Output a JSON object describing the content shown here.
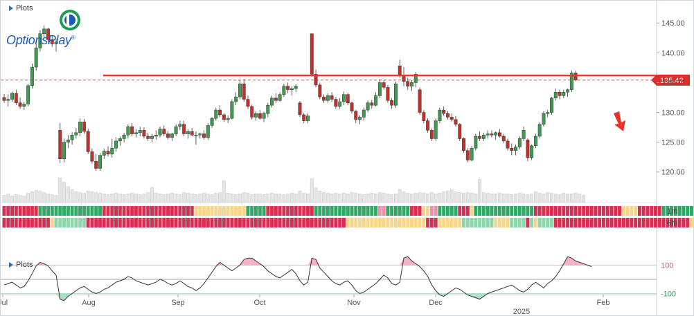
{
  "brand": {
    "name": "OptionsPlay",
    "mark": "®"
  },
  "plots_label": "Plots",
  "price_tag": "135.42",
  "heatmap_labels": [
    "1m",
    "6m"
  ],
  "colors": {
    "up": "#3e9b4f",
    "down": "#c0312b",
    "resistance": "#e03c31",
    "price_tag": "#d7302a",
    "arrow": "#e8322b",
    "heat_red": "#d92e54",
    "heat_pink": "#f08eae",
    "heat_yellow": "#f7d68a",
    "heat_lightgreen": "#8fd6ad",
    "heat_green": "#2ea866",
    "volume": "#e3e3e3"
  },
  "chart_data": {
    "type": "candlestick",
    "y_axis": {
      "ticks": [
        "145.00",
        "140.00",
        "135.00",
        "130.00",
        "125.00",
        "120.00"
      ],
      "range": [
        117.3,
        147.0
      ]
    },
    "x_axis": {
      "months": [
        "Jul",
        "Aug",
        "Sep",
        "Oct",
        "Nov",
        "Dec",
        "Feb"
      ],
      "year_label": "2025"
    },
    "resistance_level": 136.2,
    "last_price": 135.42,
    "trend_arrow": "down",
    "candles": [
      [
        132.5,
        133.1,
        131.6,
        132.0
      ],
      [
        132.0,
        133.0,
        131.0,
        132.2
      ],
      [
        132.2,
        133.5,
        131.8,
        133.2
      ],
      [
        133.2,
        133.8,
        131.2,
        131.6
      ],
      [
        131.6,
        132.5,
        130.6,
        131.0
      ],
      [
        131.0,
        131.8,
        130.4,
        131.4
      ],
      [
        131.4,
        134.8,
        131.0,
        134.5
      ],
      [
        134.5,
        138.2,
        134.0,
        137.6
      ],
      [
        137.6,
        141.5,
        137.0,
        140.8
      ],
      [
        140.8,
        143.8,
        140.2,
        143.2
      ],
      [
        143.2,
        144.6,
        142.6,
        144.0
      ],
      [
        144.0,
        144.2,
        141.8,
        142.2
      ],
      [
        142.2,
        142.9,
        141.0,
        141.5
      ],
      [
        141.5,
        142.3,
        140.2,
        141.8
      ],
      [
        127.0,
        128.2,
        121.5,
        122.2
      ],
      [
        122.2,
        125.6,
        121.6,
        125.0
      ],
      [
        125.0,
        126.2,
        124.0,
        125.4
      ],
      [
        125.4,
        126.7,
        124.6,
        126.2
      ],
      [
        126.2,
        127.4,
        125.6,
        126.6
      ],
      [
        126.6,
        129.0,
        126.0,
        128.4
      ],
      [
        128.4,
        128.9,
        126.4,
        126.8
      ],
      [
        126.8,
        127.3,
        123.0,
        123.4
      ],
      [
        123.4,
        123.9,
        121.4,
        121.8
      ],
      [
        121.8,
        123.0,
        120.2,
        120.6
      ],
      [
        120.6,
        123.2,
        120.2,
        122.8
      ],
      [
        122.8,
        123.9,
        122.2,
        123.5
      ],
      [
        123.5,
        124.3,
        122.6,
        123.0
      ],
      [
        123.0,
        125.6,
        122.4,
        124.0
      ],
      [
        124.0,
        125.8,
        123.4,
        125.2
      ],
      [
        125.2,
        126.0,
        124.4,
        125.6
      ],
      [
        125.6,
        126.6,
        125.0,
        126.2
      ],
      [
        126.2,
        128.0,
        125.6,
        127.6
      ],
      [
        127.6,
        128.2,
        126.0,
        126.4
      ],
      [
        126.4,
        127.2,
        125.8,
        126.6
      ],
      [
        126.6,
        127.6,
        126.0,
        127.0
      ],
      [
        127.0,
        127.5,
        125.6,
        126.0
      ],
      [
        126.0,
        126.6,
        125.2,
        125.6
      ],
      [
        125.6,
        126.4,
        125.0,
        126.0
      ],
      [
        126.0,
        127.0,
        125.4,
        126.2
      ],
      [
        126.2,
        127.6,
        125.8,
        127.2
      ],
      [
        127.2,
        127.8,
        126.0,
        126.4
      ],
      [
        126.4,
        126.9,
        125.4,
        125.8
      ],
      [
        125.8,
        126.6,
        125.2,
        126.4
      ],
      [
        126.4,
        128.0,
        126.0,
        127.6
      ],
      [
        127.6,
        128.6,
        127.0,
        128.0
      ],
      [
        128.0,
        128.6,
        126.0,
        126.4
      ],
      [
        126.4,
        127.2,
        125.6,
        126.8
      ],
      [
        126.8,
        127.4,
        126.0,
        126.2
      ],
      [
        126.2,
        126.8,
        124.6,
        126.2
      ],
      [
        126.2,
        126.6,
        125.6,
        126.4
      ],
      [
        126.4,
        127.0,
        125.4,
        125.8
      ],
      [
        125.8,
        128.2,
        125.4,
        127.8
      ],
      [
        127.8,
        129.2,
        127.4,
        129.0
      ],
      [
        129.0,
        130.8,
        128.6,
        130.4
      ],
      [
        130.4,
        131.2,
        129.2,
        129.6
      ],
      [
        129.6,
        129.9,
        128.4,
        128.8
      ],
      [
        128.8,
        129.5,
        128.2,
        129.0
      ],
      [
        129.0,
        132.2,
        128.8,
        131.8
      ],
      [
        131.8,
        133.4,
        131.2,
        132.6
      ],
      [
        132.6,
        135.4,
        132.2,
        134.8
      ],
      [
        134.8,
        135.6,
        131.8,
        132.2
      ],
      [
        132.2,
        132.8,
        130.6,
        131.0
      ],
      [
        131.0,
        131.3,
        128.8,
        129.2
      ],
      [
        129.2,
        130.2,
        128.6,
        129.8
      ],
      [
        129.8,
        130.4,
        128.8,
        129.0
      ],
      [
        129.0,
        130.1,
        128.4,
        129.8
      ],
      [
        129.8,
        131.6,
        129.2,
        131.2
      ],
      [
        131.2,
        132.8,
        130.8,
        132.4
      ],
      [
        132.4,
        133.2,
        131.6,
        132.0
      ],
      [
        132.0,
        133.4,
        131.8,
        133.0
      ],
      [
        133.0,
        134.8,
        132.6,
        134.4
      ],
      [
        134.4,
        135.0,
        133.2,
        133.8
      ],
      [
        133.8,
        134.4,
        132.8,
        134.0
      ],
      [
        134.0,
        134.7,
        133.4,
        134.4
      ],
      [
        131.6,
        131.9,
        129.2,
        129.6
      ],
      [
        129.6,
        129.9,
        128.2,
        128.6
      ],
      [
        128.6,
        129.8,
        128.2,
        129.4
      ],
      [
        143.2,
        143.2,
        136.0,
        136.4
      ],
      [
        136.4,
        137.2,
        134.2,
        134.6
      ],
      [
        134.6,
        135.0,
        132.2,
        132.6
      ],
      [
        132.6,
        133.0,
        131.6,
        132.0
      ],
      [
        132.0,
        133.2,
        131.6,
        132.8
      ],
      [
        132.8,
        133.4,
        131.8,
        132.2
      ],
      [
        132.2,
        132.6,
        130.6,
        131.0
      ],
      [
        131.0,
        132.4,
        130.6,
        131.8
      ],
      [
        131.8,
        133.5,
        131.2,
        133.0
      ],
      [
        133.0,
        133.3,
        131.2,
        131.6
      ],
      [
        131.6,
        131.8,
        129.8,
        130.2
      ],
      [
        130.2,
        130.4,
        128.2,
        128.8
      ],
      [
        128.8,
        129.5,
        128.0,
        129.2
      ],
      [
        129.2,
        130.8,
        128.6,
        130.4
      ],
      [
        130.4,
        132.0,
        130.0,
        131.6
      ],
      [
        131.6,
        132.1,
        130.6,
        131.2
      ],
      [
        131.2,
        133.4,
        131.0,
        132.8
      ],
      [
        132.8,
        135.6,
        132.4,
        135.0
      ],
      [
        135.0,
        135.4,
        133.8,
        134.2
      ],
      [
        134.2,
        134.6,
        131.6,
        132.0
      ],
      [
        132.0,
        132.4,
        130.6,
        131.2
      ],
      [
        131.2,
        135.2,
        130.8,
        134.8
      ],
      [
        137.8,
        138.8,
        135.8,
        136.2
      ],
      [
        136.2,
        137.6,
        134.4,
        135.2
      ],
      [
        135.2,
        135.8,
        133.8,
        134.4
      ],
      [
        134.4,
        135.4,
        133.6,
        135.0
      ],
      [
        135.0,
        136.8,
        134.2,
        136.4
      ],
      [
        133.8,
        134.2,
        129.6,
        130.0
      ],
      [
        130.0,
        130.4,
        128.2,
        128.6
      ],
      [
        128.6,
        129.0,
        126.6,
        127.0
      ],
      [
        127.0,
        127.3,
        125.2,
        125.6
      ],
      [
        125.6,
        129.0,
        125.2,
        128.6
      ],
      [
        128.6,
        130.8,
        128.2,
        130.4
      ],
      [
        130.4,
        131.0,
        129.4,
        129.8
      ],
      [
        129.8,
        130.2,
        128.8,
        129.2
      ],
      [
        129.2,
        129.8,
        128.4,
        128.8
      ],
      [
        128.8,
        129.4,
        127.6,
        128.0
      ],
      [
        128.0,
        128.2,
        125.2,
        125.6
      ],
      [
        125.6,
        125.8,
        123.2,
        123.6
      ],
      [
        123.6,
        124.0,
        121.6,
        122.0
      ],
      [
        122.0,
        124.4,
        121.8,
        124.0
      ],
      [
        124.0,
        126.4,
        123.6,
        126.0
      ],
      [
        126.0,
        126.8,
        125.2,
        125.6
      ],
      [
        125.6,
        126.6,
        125.2,
        126.2
      ],
      [
        126.2,
        127.0,
        125.6,
        126.4
      ],
      [
        126.4,
        127.0,
        125.8,
        126.2
      ],
      [
        126.2,
        126.8,
        125.4,
        126.6
      ],
      [
        126.6,
        127.2,
        125.8,
        126.0
      ],
      [
        126.0,
        126.4,
        124.8,
        125.2
      ],
      [
        125.2,
        125.6,
        123.6,
        124.0
      ],
      [
        124.0,
        124.8,
        122.8,
        123.6
      ],
      [
        123.6,
        124.6,
        122.8,
        124.2
      ],
      [
        124.2,
        126.0,
        123.8,
        125.6
      ],
      [
        125.6,
        127.6,
        125.2,
        127.0
      ],
      [
        125.4,
        125.6,
        121.8,
        122.4
      ],
      [
        122.4,
        124.6,
        122.0,
        124.4
      ],
      [
        124.4,
        126.4,
        124.0,
        126.0
      ],
      [
        126.0,
        128.4,
        125.6,
        128.0
      ],
      [
        128.0,
        130.2,
        127.6,
        129.8
      ],
      [
        129.8,
        130.4,
        129.2,
        130.0
      ],
      [
        130.0,
        132.6,
        129.6,
        132.4
      ],
      [
        132.4,
        134.0,
        132.0,
        133.4
      ],
      [
        133.4,
        133.8,
        132.2,
        132.8
      ],
      [
        132.8,
        133.8,
        132.4,
        133.4
      ],
      [
        133.4,
        134.0,
        132.6,
        133.8
      ],
      [
        133.8,
        137.0,
        133.4,
        136.6
      ],
      [
        136.6,
        137.0,
        135.2,
        135.42
      ]
    ],
    "volume": [
      10,
      12,
      9,
      11,
      10,
      9,
      13,
      15,
      17,
      16,
      14,
      12,
      11,
      10,
      34,
      28,
      22,
      18,
      15,
      14,
      13,
      16,
      15,
      14,
      13,
      12,
      11,
      12,
      13,
      12,
      11,
      12,
      13,
      12,
      11,
      12,
      14,
      21,
      13,
      12,
      11,
      12,
      13,
      12,
      11,
      14,
      13,
      12,
      11,
      12,
      13,
      12,
      11,
      13,
      14,
      30,
      13,
      12,
      11,
      12,
      14,
      13,
      11,
      12,
      12,
      11,
      12,
      13,
      12,
      12,
      11,
      12,
      13,
      12,
      16,
      13,
      12,
      33,
      20,
      16,
      14,
      13,
      12,
      13,
      12,
      13,
      12,
      14,
      13,
      12,
      11,
      12,
      13,
      12,
      14,
      13,
      12,
      11,
      12,
      18,
      15,
      13,
      12,
      13,
      14,
      13,
      12,
      14,
      12,
      13,
      15,
      16,
      18,
      15,
      14,
      13,
      14,
      13,
      12,
      32,
      14,
      13,
      12,
      12,
      13,
      12,
      12,
      11,
      12,
      13,
      12,
      11,
      12,
      15,
      13,
      12,
      14,
      13,
      12,
      11,
      13,
      12,
      12,
      13,
      12,
      10
    ],
    "heatmap_1m": "RRRRRRRRRGGGGGGGGGGGGGGGGRRRRRRRRRRRRRRRRRRRRRRRYYYYYYYYYYYYYGGGGGRRRRRRRRRRRRGGGGGGGGGGGGGGGGPPGGGGGGRRRYYPPGGGGGRRRYGGGGGGGGGGGGGGGRRRRRRRRRRRRRRRRRRRRRRYYYYRRRRRRGGGGGGGGG",
    "heatmap_6m": "RRRRRRRRRRRRYLLLLLLLLRRRRRRRRRRRRRRRRRRRRRRRRRRRRRRRRRRRRRRRRRRRRRRRRRRRRRRRRRRRRRRRRRYYYYYYYYYYYYYYYYYYYYRRRYYYYYYLLLLLLLLYYYYLLLLRLYLLLLRRRRRRRRRRRRRRRRRRRRRRRRRRRRRRRRRRYLLLLLLLLL",
    "oscillator": {
      "levels": [
        "100",
        "-100"
      ],
      "values": [
        -40,
        -30,
        -20,
        -40,
        -60,
        -50,
        -10,
        40,
        95,
        120,
        110,
        95,
        60,
        30,
        -140,
        -150,
        -120,
        -100,
        -80,
        -60,
        -50,
        -70,
        -90,
        -100,
        -90,
        -70,
        -60,
        -40,
        -20,
        -10,
        0,
        20,
        10,
        -10,
        -20,
        -30,
        -40,
        -30,
        -20,
        0,
        -10,
        -30,
        -40,
        -30,
        -10,
        -30,
        -50,
        -60,
        -80,
        -60,
        -30,
        10,
        50,
        90,
        120,
        100,
        80,
        60,
        80,
        100,
        140,
        150,
        150,
        130,
        110,
        90,
        60,
        40,
        20,
        10,
        30,
        50,
        70,
        40,
        -10,
        -40,
        -20,
        150,
        140,
        80,
        50,
        20,
        -10,
        -30,
        -40,
        -20,
        -10,
        -40,
        -80,
        -100,
        -90,
        -70,
        -50,
        -30,
        0,
        30,
        10,
        -30,
        -40,
        -20,
        150,
        160,
        130,
        110,
        90,
        60,
        20,
        -40,
        -80,
        -110,
        -120,
        -100,
        -80,
        -60,
        -70,
        -90,
        -110,
        -120,
        -130,
        -140,
        -120,
        -100,
        -90,
        -80,
        -70,
        -60,
        -50,
        -40,
        -60,
        -80,
        -90,
        -70,
        -40,
        -20,
        -40,
        -60,
        -30,
        -10,
        20,
        60,
        110,
        160,
        150,
        130,
        120,
        110,
        100,
        90
      ]
    }
  }
}
